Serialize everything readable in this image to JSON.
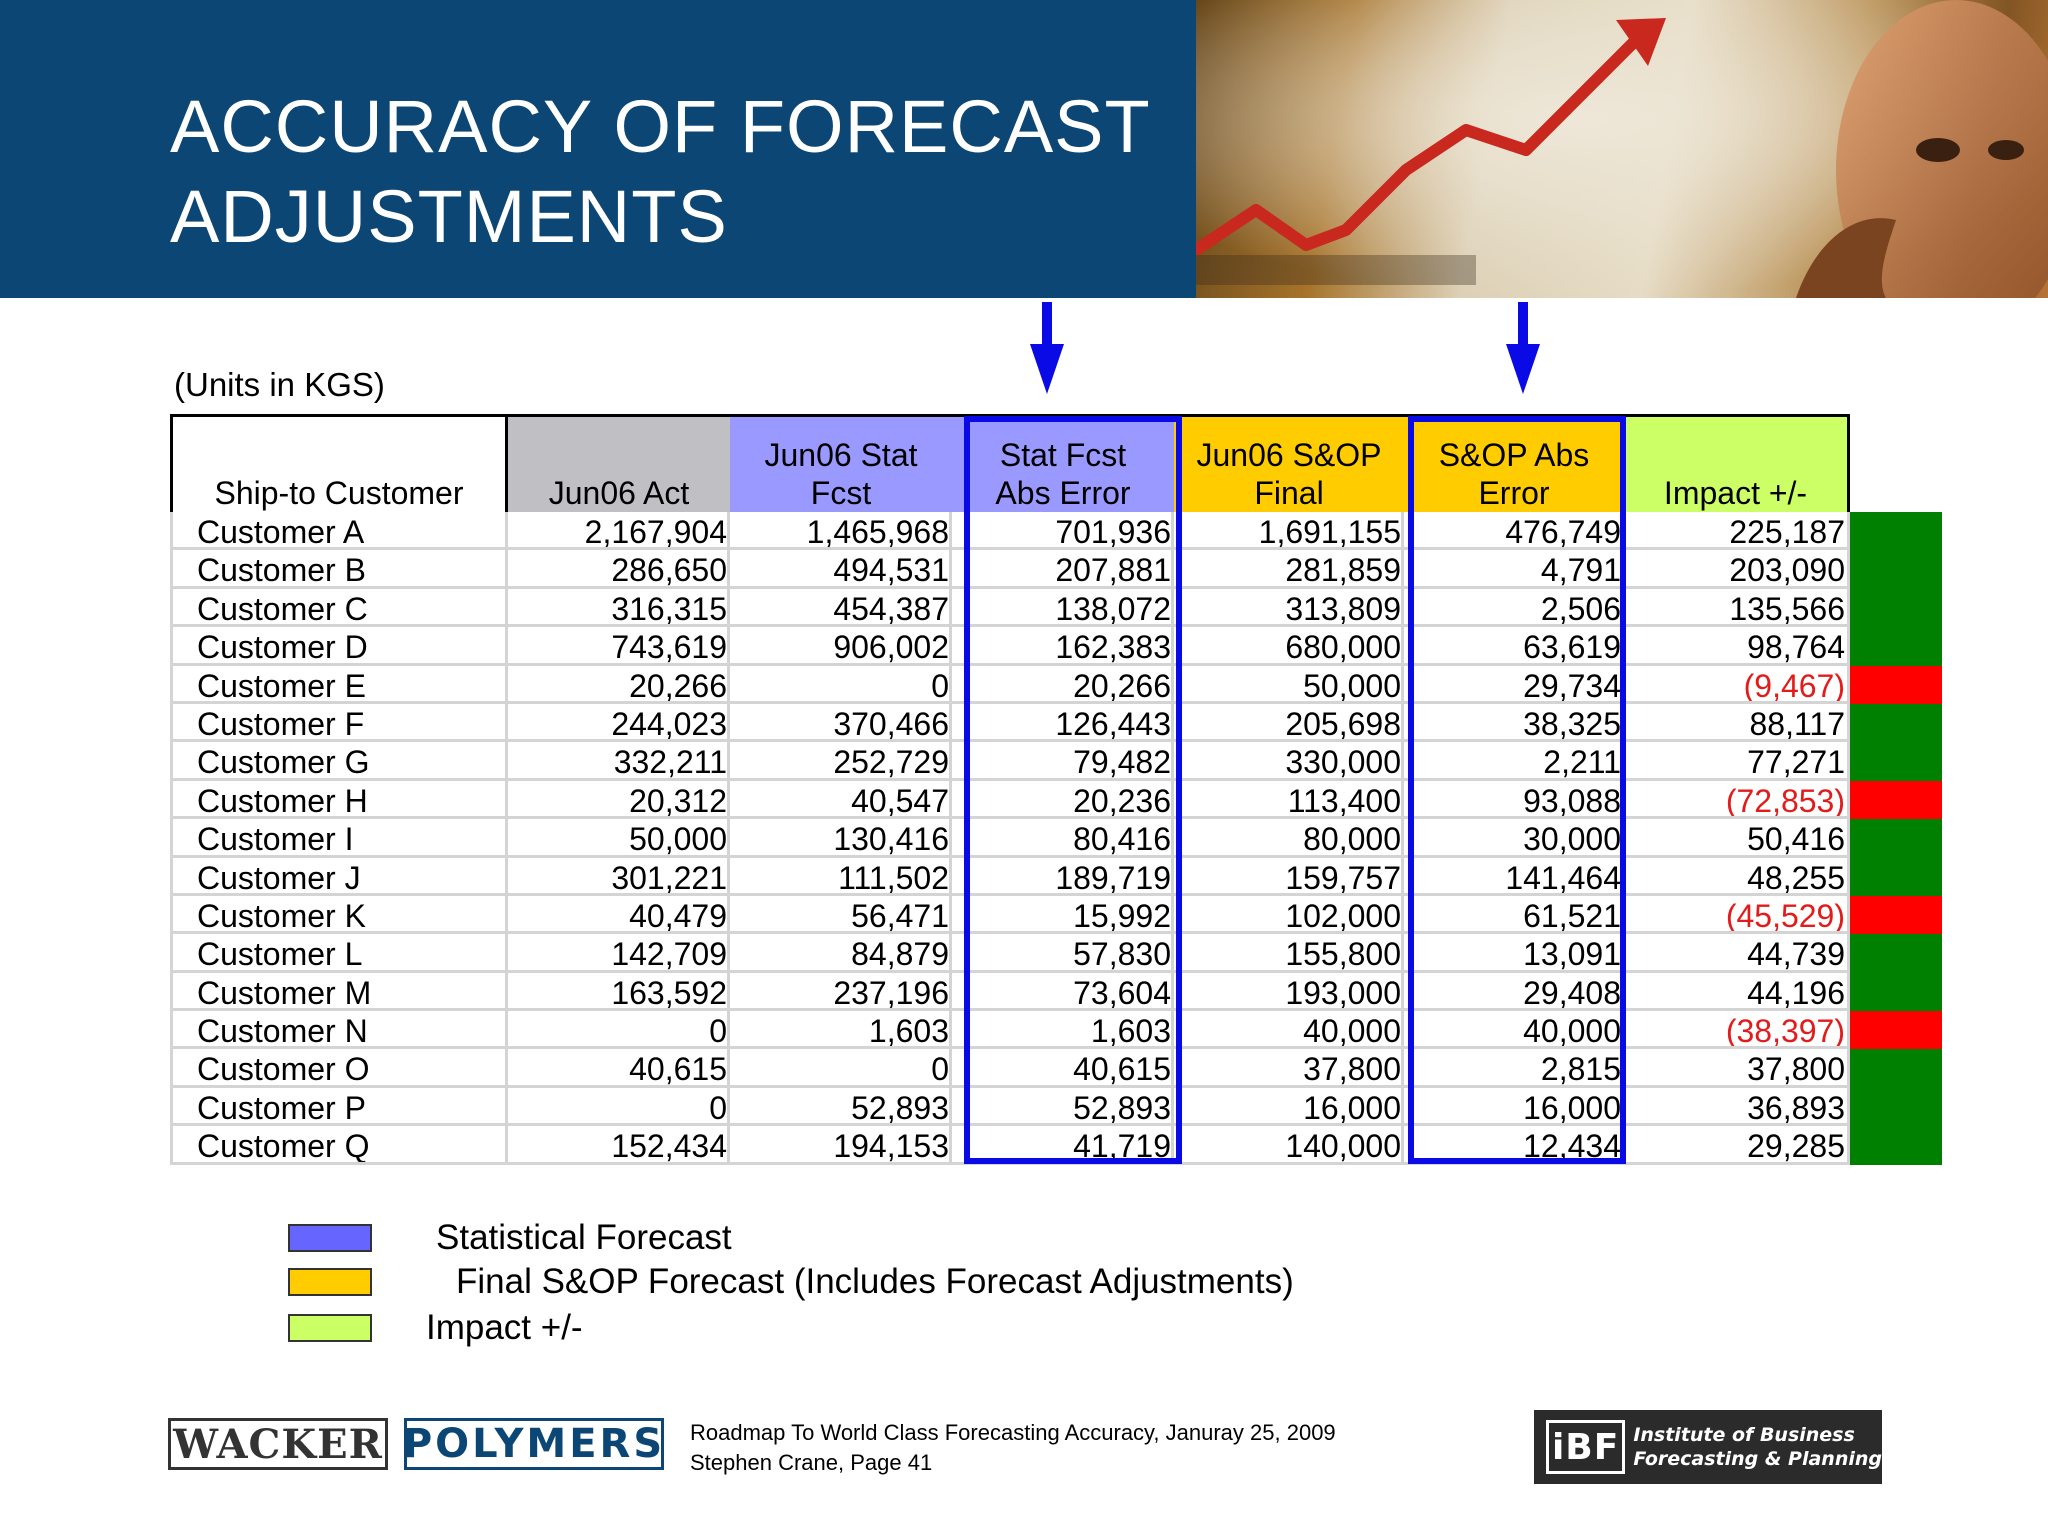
{
  "slide": {
    "title_line1": "ACCURACY OF FORECAST",
    "title_line2": "ADJUSTMENTS",
    "units_note": "(Units in KGS)"
  },
  "table": {
    "headers": [
      {
        "line1": "",
        "line2": "Ship-to Customer"
      },
      {
        "line1": "",
        "line2": "Jun06 Act"
      },
      {
        "line1": "Jun06 Stat",
        "line2": "Fcst"
      },
      {
        "line1": "Stat Fcst",
        "line2": "Abs Error"
      },
      {
        "line1": "Jun06 S&OP",
        "line2": "Final"
      },
      {
        "line1": "S&OP Abs",
        "line2": "Error"
      },
      {
        "line1": "",
        "line2": "Impact +/-"
      }
    ],
    "rows": [
      {
        "name": "Customer A",
        "values": [
          "2,167,904",
          "1,465,968",
          "701,936",
          "1,691,155",
          "476,749",
          "225,187"
        ],
        "status": "positive"
      },
      {
        "name": "Customer B",
        "values": [
          "286,650",
          "494,531",
          "207,881",
          "281,859",
          "4,791",
          "203,090"
        ],
        "status": "positive"
      },
      {
        "name": "Customer C",
        "values": [
          "316,315",
          "454,387",
          "138,072",
          "313,809",
          "2,506",
          "135,566"
        ],
        "status": "positive"
      },
      {
        "name": "Customer D",
        "values": [
          "743,619",
          "906,002",
          "162,383",
          "680,000",
          "63,619",
          "98,764"
        ],
        "status": "positive"
      },
      {
        "name": "Customer E",
        "values": [
          "20,266",
          "0",
          "20,266",
          "50,000",
          "29,734",
          "(9,467)"
        ],
        "status": "negative"
      },
      {
        "name": "Customer F",
        "values": [
          "244,023",
          "370,466",
          "126,443",
          "205,698",
          "38,325",
          "88,117"
        ],
        "status": "positive"
      },
      {
        "name": "Customer G",
        "values": [
          "332,211",
          "252,729",
          "79,482",
          "330,000",
          "2,211",
          "77,271"
        ],
        "status": "positive"
      },
      {
        "name": "Customer H",
        "values": [
          "20,312",
          "40,547",
          "20,236",
          "113,400",
          "93,088",
          "(72,853)"
        ],
        "status": "negative"
      },
      {
        "name": "Customer I",
        "values": [
          "50,000",
          "130,416",
          "80,416",
          "80,000",
          "30,000",
          "50,416"
        ],
        "status": "positive"
      },
      {
        "name": "Customer J",
        "values": [
          "301,221",
          "111,502",
          "189,719",
          "159,757",
          "141,464",
          "48,255"
        ],
        "status": "positive"
      },
      {
        "name": "Customer K",
        "values": [
          "40,479",
          "56,471",
          "15,992",
          "102,000",
          "61,521",
          "(45,529)"
        ],
        "status": "negative"
      },
      {
        "name": "Customer L",
        "values": [
          "142,709",
          "84,879",
          "57,830",
          "155,800",
          "13,091",
          "44,739"
        ],
        "status": "positive"
      },
      {
        "name": "Customer M",
        "values": [
          "163,592",
          "237,196",
          "73,604",
          "193,000",
          "29,408",
          "44,196"
        ],
        "status": "positive"
      },
      {
        "name": "Customer N",
        "values": [
          "0",
          "1,603",
          "1,603",
          "40,000",
          "40,000",
          "(38,397)"
        ],
        "status": "negative"
      },
      {
        "name": "Customer O",
        "values": [
          "40,615",
          "0",
          "40,615",
          "37,800",
          "2,815",
          "37,800"
        ],
        "status": "positive"
      },
      {
        "name": "Customer P",
        "values": [
          "0",
          "52,893",
          "52,893",
          "16,000",
          "16,000",
          "36,893"
        ],
        "status": "positive"
      },
      {
        "name": "Customer Q",
        "values": [
          "152,434",
          "194,153",
          "41,719",
          "140,000",
          "12,434",
          "29,285"
        ],
        "status": "positive"
      }
    ]
  },
  "legend": [
    {
      "label": "Statistical Forecast",
      "color": "#6666ff"
    },
    {
      "label": "Final S&OP Forecast (Includes Forecast Adjustments)",
      "color": "#ffcc00"
    },
    {
      "label": "Impact +/-",
      "color": "#ccff66"
    }
  ],
  "colors": {
    "header_band": "#0c4674",
    "highlight_box": "#0a0ae6",
    "status_positive": "#008000",
    "status_negative": "#ff0000",
    "negative_text": "#e31b1b"
  },
  "footer": {
    "logo_left_1": "WACKER",
    "logo_left_2": "POLYMERS",
    "text_line1": "Roadmap To World Class Forecasting Accuracy, Januray 25, 2009",
    "text_line2": "Stephen Crane, Page 41",
    "ibf_mark": "iBF",
    "ibf_line1": "Institute of Business",
    "ibf_line2": "Forecasting & Planning"
  }
}
